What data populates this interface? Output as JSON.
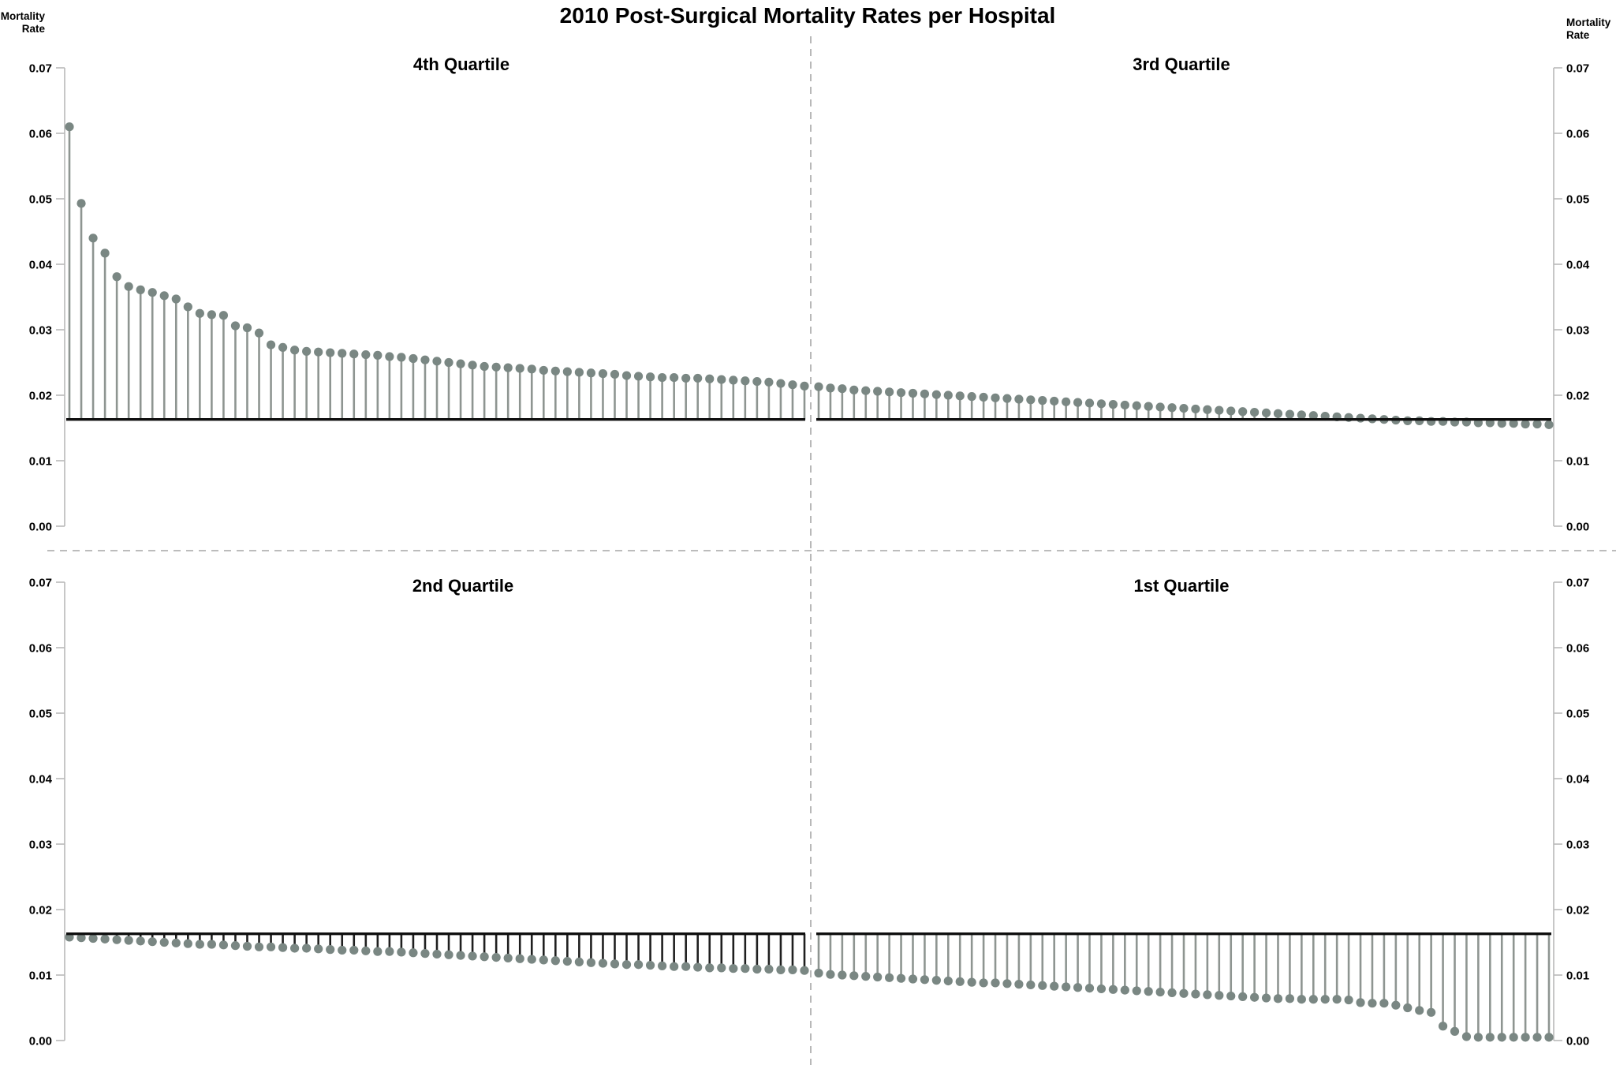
{
  "chart_data": {
    "type": "lollipop",
    "title": "2010 Post-Surgical Mortality Rates per Hospital",
    "y_axis_label_lines": [
      "Mortality",
      "Rate"
    ],
    "ylim": [
      0.0,
      0.07
    ],
    "y_tick_labels": [
      "0.07",
      "0.06",
      "0.05",
      "0.04",
      "0.03",
      "0.02",
      "0.01",
      "0.00"
    ],
    "reference_line_value": 0.0163,
    "grid": "off",
    "legend": "none",
    "layout_note": "Four quadrant panels split by dashed dividers; hospitals sorted by descending mortality rate; stems drawn from reference line at 0.0163 to each value",
    "colors": {
      "dot": "#7a8783",
      "stem": "#8e9591",
      "stem_2nd_quartile": "#1f1f1f",
      "baseline": "#0f0f0f",
      "axis": "#b9b9b9",
      "divider": "#a6a6a6",
      "text": "#000000",
      "background": "#ffffff"
    },
    "panels": [
      {
        "label": "4th Quartile",
        "row": 0,
        "col": 0,
        "stem_color_key": "stem",
        "values": [
          0.061,
          0.0493,
          0.044,
          0.0417,
          0.0381,
          0.0366,
          0.0361,
          0.0357,
          0.0352,
          0.0347,
          0.0335,
          0.0325,
          0.0323,
          0.0322,
          0.0306,
          0.0303,
          0.0295,
          0.0277,
          0.0273,
          0.0269,
          0.0267,
          0.0266,
          0.0265,
          0.0264,
          0.0263,
          0.0262,
          0.0261,
          0.0259,
          0.0258,
          0.0256,
          0.0254,
          0.0252,
          0.025,
          0.0248,
          0.0246,
          0.0244,
          0.0243,
          0.0242,
          0.0241,
          0.024,
          0.0238,
          0.0237,
          0.0236,
          0.0235,
          0.0234,
          0.0233,
          0.0232,
          0.023,
          0.0229,
          0.0228,
          0.0227,
          0.0227,
          0.0226,
          0.0226,
          0.0225,
          0.0224,
          0.0223,
          0.0222,
          0.0221,
          0.022,
          0.0218,
          0.0216,
          0.0214
        ]
      },
      {
        "label": "3rd Quartile",
        "row": 0,
        "col": 1,
        "stem_color_key": "stem",
        "values": [
          0.0213,
          0.0211,
          0.021,
          0.0208,
          0.0207,
          0.0206,
          0.0205,
          0.0204,
          0.0203,
          0.0202,
          0.0201,
          0.02,
          0.0199,
          0.0198,
          0.0197,
          0.0196,
          0.0195,
          0.0194,
          0.0193,
          0.0192,
          0.0191,
          0.019,
          0.0189,
          0.0188,
          0.0187,
          0.0186,
          0.0185,
          0.0184,
          0.0183,
          0.0182,
          0.0181,
          0.018,
          0.0179,
          0.0178,
          0.0177,
          0.0176,
          0.0175,
          0.0174,
          0.0173,
          0.0172,
          0.0171,
          0.017,
          0.0169,
          0.0168,
          0.0167,
          0.0166,
          0.0165,
          0.0164,
          0.0163,
          0.0162,
          0.0161,
          0.0161,
          0.016,
          0.016,
          0.0159,
          0.0159,
          0.0158,
          0.0158,
          0.0157,
          0.0157,
          0.0156,
          0.0156,
          0.0155
        ]
      },
      {
        "label": "2nd Quartile",
        "row": 1,
        "col": 0,
        "stem_color_key": "stem_2nd_quartile",
        "values": [
          0.0158,
          0.0157,
          0.0156,
          0.0155,
          0.0154,
          0.0153,
          0.0152,
          0.0151,
          0.015,
          0.0149,
          0.0148,
          0.0147,
          0.0147,
          0.0146,
          0.0145,
          0.0144,
          0.0143,
          0.0143,
          0.0142,
          0.0141,
          0.0141,
          0.014,
          0.0139,
          0.0138,
          0.0138,
          0.0137,
          0.0136,
          0.0136,
          0.0135,
          0.0134,
          0.0133,
          0.0132,
          0.0131,
          0.013,
          0.0129,
          0.0128,
          0.0127,
          0.0126,
          0.0125,
          0.0124,
          0.0123,
          0.0122,
          0.0121,
          0.012,
          0.0119,
          0.0118,
          0.0117,
          0.0116,
          0.0116,
          0.0115,
          0.0114,
          0.0113,
          0.0113,
          0.0112,
          0.0111,
          0.0111,
          0.011,
          0.011,
          0.0109,
          0.0109,
          0.0108,
          0.0108,
          0.0107
        ]
      },
      {
        "label": "1st Quartile",
        "row": 1,
        "col": 1,
        "stem_color_key": "stem",
        "values": [
          0.0103,
          0.0101,
          0.01,
          0.0099,
          0.0098,
          0.0097,
          0.0096,
          0.0095,
          0.0094,
          0.0093,
          0.0092,
          0.0091,
          0.009,
          0.0089,
          0.0088,
          0.0088,
          0.0087,
          0.0086,
          0.0085,
          0.0084,
          0.0083,
          0.0082,
          0.0081,
          0.008,
          0.0079,
          0.0078,
          0.0077,
          0.0076,
          0.0075,
          0.0074,
          0.0073,
          0.0072,
          0.0071,
          0.007,
          0.0069,
          0.0068,
          0.0067,
          0.0066,
          0.0065,
          0.0064,
          0.0064,
          0.0063,
          0.0063,
          0.0063,
          0.0063,
          0.0062,
          0.0058,
          0.0057,
          0.0057,
          0.0054,
          0.005,
          0.0046,
          0.0043,
          0.0022,
          0.0014,
          0.0006,
          0.0005,
          0.0005,
          0.0005,
          0.0005,
          0.0005,
          0.0005,
          0.0005
        ]
      }
    ]
  }
}
